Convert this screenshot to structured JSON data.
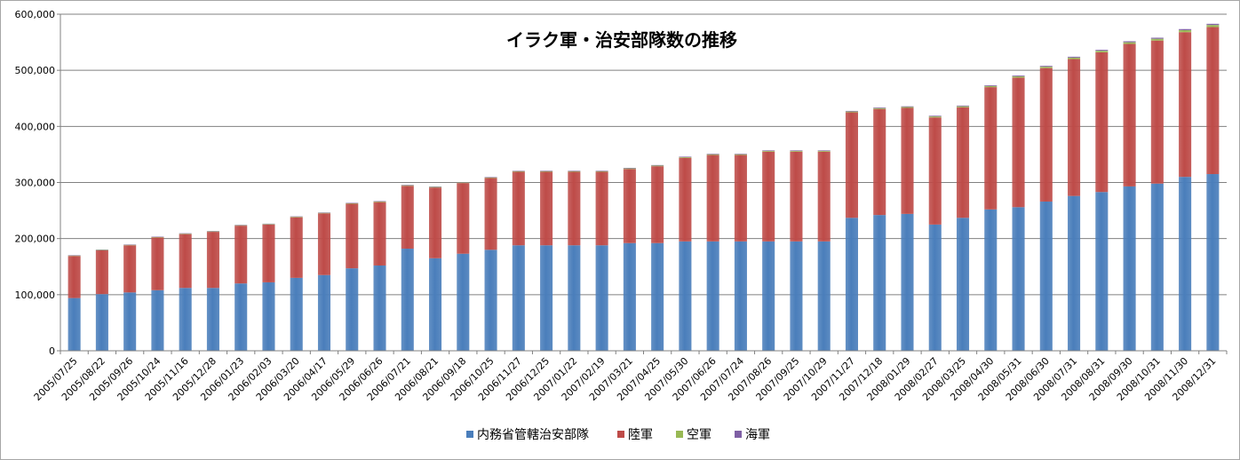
{
  "chart_data": {
    "type": "bar",
    "stacked": true,
    "title": "イラク軍・治安部隊数の推移",
    "xlabel": "",
    "ylabel": "",
    "ylim": [
      0,
      600000
    ],
    "yticks": [
      0,
      100000,
      200000,
      300000,
      400000,
      500000,
      600000
    ],
    "ytick_labels": [
      "0",
      "100,000",
      "200,000",
      "300,000",
      "400,000",
      "500,000",
      "600,000"
    ],
    "grid": true,
    "legend_position": "bottom",
    "categories": [
      "2005/07/25",
      "2005/08/22",
      "2005/09/26",
      "2005/10/24",
      "2005/11/16",
      "2005/12/28",
      "2006/01/23",
      "2006/02/03",
      "2006/03/20",
      "2006/04/17",
      "2006/05/29",
      "2006/06/26",
      "2006/07/21",
      "2006/08/21",
      "2006/09/18",
      "2006/10/25",
      "2006/11/27",
      "2006/12/25",
      "2007/01/22",
      "2007/02/19",
      "2007/03/21",
      "2007/04/25",
      "2007/05/30",
      "2007/06/26",
      "2007/07/24",
      "2007/08/26",
      "2007/09/25",
      "2007/10/29",
      "2007/11/27",
      "2007/12/18",
      "2008/01/29",
      "2008/02/27",
      "2008/03/25",
      "2008/04/30",
      "2008/05/31",
      "2008/06/30",
      "2008/07/31",
      "2008/08/31",
      "2008/09/30",
      "2008/10/31",
      "2008/11/30",
      "2008/12/31"
    ],
    "series": [
      {
        "name": "内務省管轄治安部隊",
        "color": "#4a7ebb",
        "values": [
          94000,
          101000,
          104000,
          108000,
          112000,
          112000,
          120000,
          122000,
          130000,
          135000,
          147000,
          152000,
          182000,
          165000,
          173000,
          180000,
          188000,
          188000,
          188000,
          188000,
          192000,
          192000,
          195000,
          195000,
          195000,
          195000,
          195000,
          195000,
          237000,
          242000,
          244000,
          225000,
          237000,
          252000,
          256000,
          266000,
          276000,
          283000,
          293000,
          298000,
          310000,
          315000
        ]
      },
      {
        "name": "陸軍",
        "color": "#be4b48",
        "values": [
          75000,
          78000,
          84000,
          94000,
          96000,
          100000,
          103000,
          103000,
          108000,
          110000,
          115000,
          113000,
          112000,
          126000,
          126000,
          128000,
          131000,
          131000,
          131000,
          131000,
          132000,
          137000,
          149000,
          154000,
          154000,
          160000,
          160000,
          160000,
          188000,
          189000,
          189000,
          191000,
          197000,
          218000,
          231000,
          238000,
          244000,
          249000,
          254000,
          255000,
          258000,
          262000
        ]
      },
      {
        "name": "空軍",
        "color": "#98b954",
        "values": [
          800,
          800,
          800,
          800,
          800,
          800,
          800,
          900,
          900,
          900,
          900,
          1000,
          1000,
          1000,
          1000,
          1000,
          1100,
          1100,
          1100,
          1100,
          1200,
          1200,
          1200,
          1300,
          1300,
          1300,
          1300,
          1300,
          1500,
          1600,
          1700,
          1800,
          1900,
          2000,
          2200,
          2400,
          2600,
          2800,
          3000,
          3200,
          3500,
          3800
        ]
      },
      {
        "name": "海軍",
        "color": "#7e5fa4",
        "values": [
          700,
          700,
          700,
          700,
          700,
          700,
          700,
          700,
          700,
          700,
          800,
          800,
          800,
          800,
          800,
          800,
          800,
          900,
          900,
          900,
          900,
          900,
          900,
          900,
          900,
          1000,
          1000,
          1000,
          1100,
          1100,
          1100,
          1200,
          1200,
          1300,
          1400,
          1500,
          1600,
          1700,
          1800,
          1900,
          2000,
          2100
        ]
      }
    ]
  }
}
